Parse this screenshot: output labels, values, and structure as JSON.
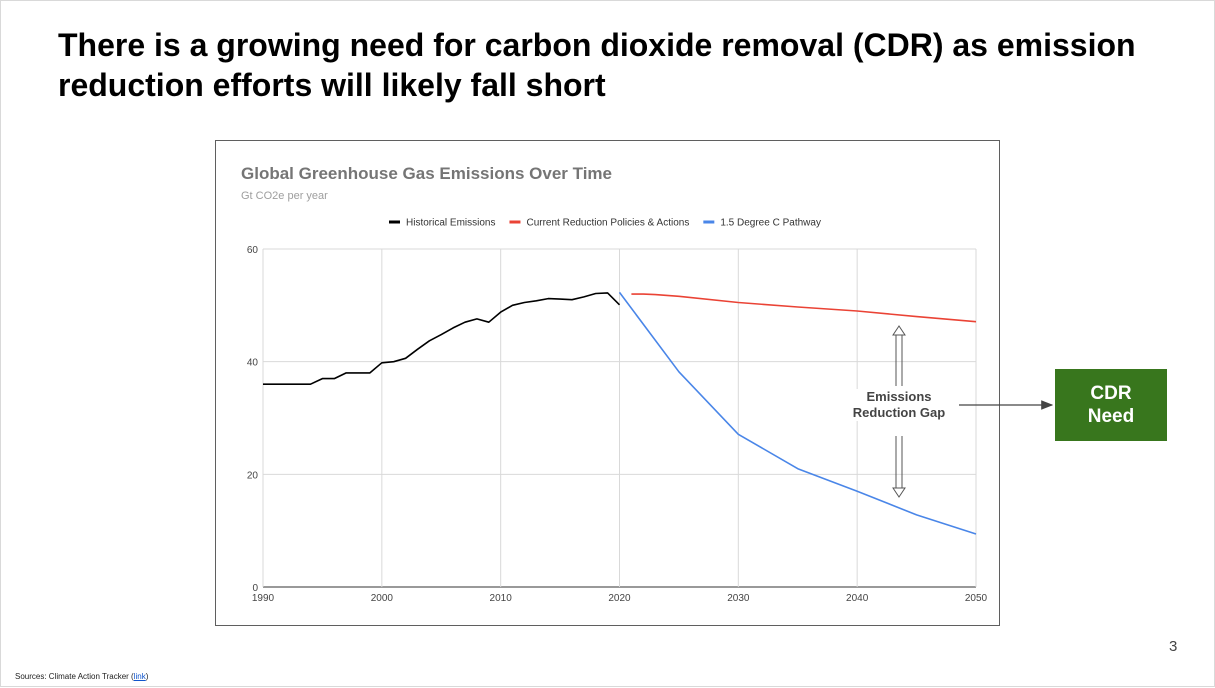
{
  "slide": {
    "title": "There is a growing need for carbon dioxide removal (CDR) as emission reduction efforts will likely fall short",
    "page_number": "3",
    "sources_prefix": "Sources: Climate Action Tracker (",
    "sources_link": "link",
    "sources_suffix": ")"
  },
  "annotations": {
    "gap_label_line1": "Emissions",
    "gap_label_line2": "Reduction Gap",
    "cdr_line1": "CDR",
    "cdr_line2": "Need"
  },
  "colors": {
    "historical": "#000000",
    "current_policies": "#ea4335",
    "pathway_1_5": "#4a86e8",
    "cdr_box": "#38761d",
    "grid": "#d9d9d9"
  },
  "chart_data": {
    "type": "line",
    "title": "Global Greenhouse Gas Emissions Over Time",
    "subtitle": "Gt CO2e per year",
    "xlabel": "",
    "ylabel": "",
    "xlim": [
      1990,
      2050
    ],
    "ylim": [
      0,
      60
    ],
    "x_ticks": [
      1990,
      2000,
      2010,
      2020,
      2030,
      2040,
      2050
    ],
    "y_ticks": [
      0,
      20,
      40,
      60
    ],
    "legend_position": "top",
    "series": [
      {
        "name": "Historical Emissions",
        "color": "#000000",
        "points": [
          [
            1990,
            36
          ],
          [
            1991,
            36
          ],
          [
            1992,
            36
          ],
          [
            1993,
            36
          ],
          [
            1994,
            36
          ],
          [
            1995,
            37
          ],
          [
            1996,
            37
          ],
          [
            1997,
            38
          ],
          [
            1998,
            38
          ],
          [
            1999,
            38
          ],
          [
            2000,
            39.8
          ],
          [
            2001,
            40
          ],
          [
            2002,
            40.6
          ],
          [
            2003,
            42.2
          ],
          [
            2004,
            43.7
          ],
          [
            2005,
            44.8
          ],
          [
            2006,
            46
          ],
          [
            2007,
            47
          ],
          [
            2008,
            47.6
          ],
          [
            2009,
            47
          ],
          [
            2010,
            48.8
          ],
          [
            2011,
            50
          ],
          [
            2012,
            50.5
          ],
          [
            2013,
            50.8
          ],
          [
            2014,
            51.2
          ],
          [
            2015,
            51.1
          ],
          [
            2016,
            51
          ],
          [
            2017,
            51.5
          ],
          [
            2018,
            52.1
          ],
          [
            2019,
            52.2
          ],
          [
            2020,
            50.1
          ]
        ]
      },
      {
        "name": "Current Reduction Policies & Actions",
        "color": "#ea4335",
        "points": [
          [
            2021,
            52
          ],
          [
            2022,
            52
          ],
          [
            2023,
            51.9
          ],
          [
            2025,
            51.6
          ],
          [
            2030,
            50.5
          ],
          [
            2035,
            49.7
          ],
          [
            2040,
            49
          ],
          [
            2045,
            48
          ],
          [
            2050,
            47.1
          ]
        ]
      },
      {
        "name": "1.5 Degree C Pathway",
        "color": "#4a86e8",
        "points": [
          [
            2020,
            52.3
          ],
          [
            2025,
            38.2
          ],
          [
            2030,
            27.1
          ],
          [
            2035,
            21
          ],
          [
            2040,
            17
          ],
          [
            2045,
            12.8
          ],
          [
            2050,
            9.4
          ]
        ]
      }
    ]
  }
}
